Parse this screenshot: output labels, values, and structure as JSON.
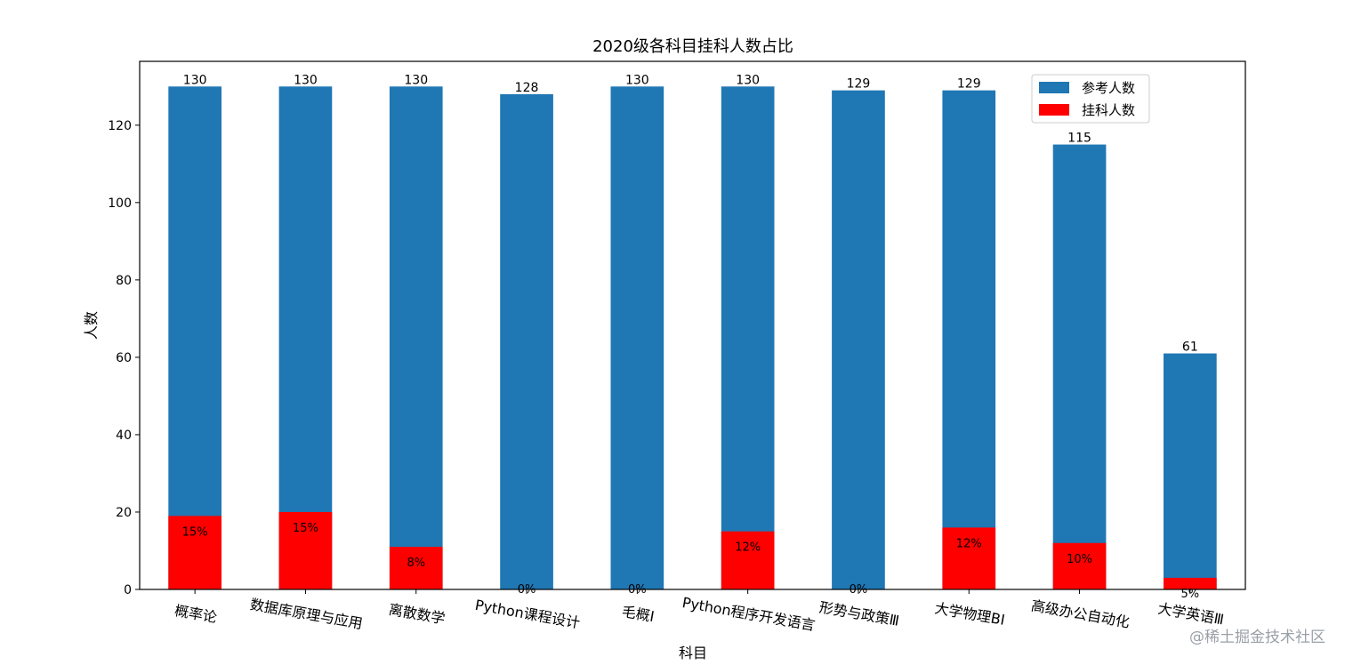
{
  "chart_data": {
    "type": "bar",
    "title": "2020级各科目挂科人数占比",
    "xlabel": "科目",
    "ylabel": "人数",
    "ylim": [
      0,
      136.5
    ],
    "yticks": [
      0,
      20,
      40,
      60,
      80,
      100,
      120
    ],
    "categories": [
      "概率论",
      "数据库原理与应用",
      "离散数学",
      "Python课程设计",
      "毛概Ⅰ",
      "Python程序开发语言",
      "形势与政策Ⅲ",
      "大学物理BⅠ",
      "高级办公自动化",
      "大学英语Ⅲ"
    ],
    "series": [
      {
        "name": "参考人数",
        "color": "#1f77b4",
        "values": [
          130,
          130,
          130,
          128,
          130,
          130,
          129,
          129,
          115,
          61
        ]
      },
      {
        "name": "挂科人数",
        "color": "#ff0000",
        "values": [
          19,
          20,
          11,
          0,
          0,
          15,
          0,
          16,
          12,
          3
        ]
      }
    ],
    "percent_labels": [
      "15%",
      "15%",
      "8%",
      "0%",
      "0%",
      "12%",
      "0%",
      "12%",
      "10%",
      "5%"
    ],
    "total_labels": [
      "130",
      "130",
      "130",
      "128",
      "130",
      "130",
      "129",
      "129",
      "115",
      "61"
    ],
    "legend_position": "upper-right",
    "grid": false
  },
  "watermark": "@稀土掘金技术社区"
}
